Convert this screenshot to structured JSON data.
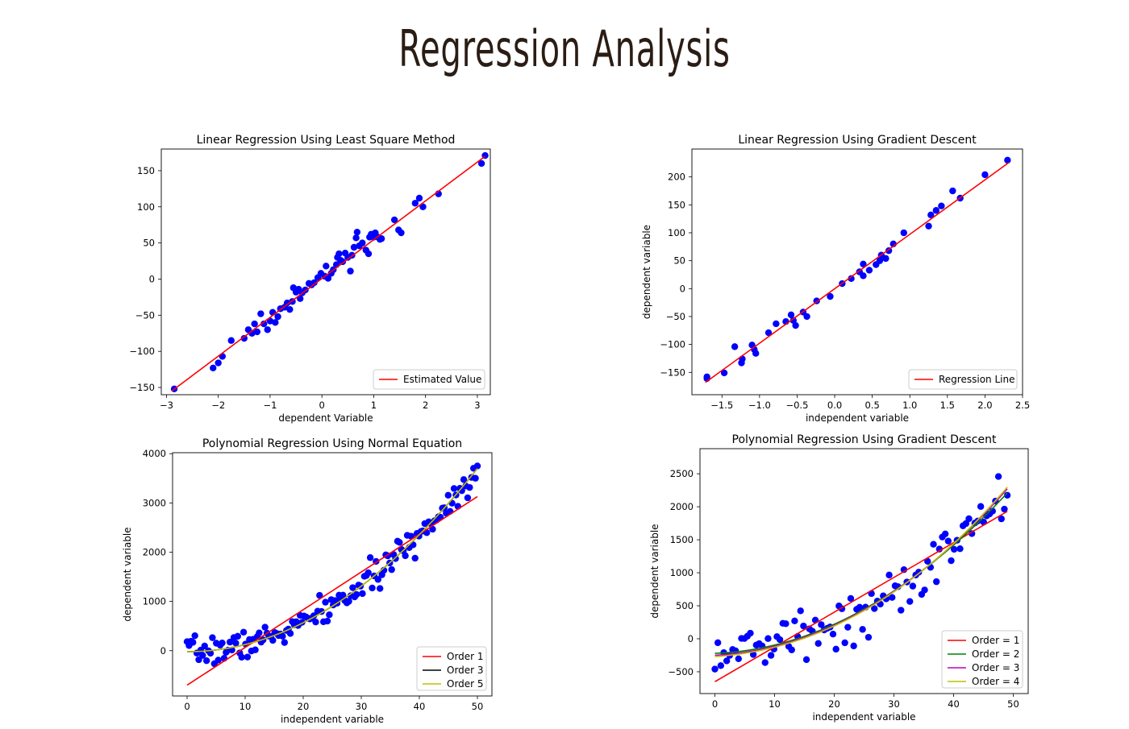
{
  "page": {
    "title": "Regression Analysis"
  },
  "colors": {
    "points": "#0000ff",
    "red": "#ff0000",
    "black": "#000000",
    "green": "#008000",
    "magenta": "#bf00bf",
    "olive": "#bfbf00"
  },
  "chart_data": [
    {
      "type": "scatter",
      "title": "Linear Regression Using Least Square Method",
      "xlabel": "dependent Variable",
      "ylabel": "",
      "xlim": [
        -3.1,
        3.25
      ],
      "ylim": [
        -160,
        180
      ],
      "xticks": [
        -3,
        -2,
        -1,
        0,
        1,
        2,
        3
      ],
      "yticks": [
        -150,
        -100,
        -50,
        0,
        50,
        100,
        150
      ],
      "grid": false,
      "legend_position": "bottom-right",
      "scatter": {
        "name": "",
        "color": "#0000ff",
        "points": [
          [
            -2.85,
            -152
          ],
          [
            -2.1,
            -123
          ],
          [
            -2.0,
            -116
          ],
          [
            -1.92,
            -107
          ],
          [
            -1.75,
            -85
          ],
          [
            -1.5,
            -82
          ],
          [
            -1.42,
            -70
          ],
          [
            -1.35,
            -75
          ],
          [
            -1.3,
            -62
          ],
          [
            -1.25,
            -73
          ],
          [
            -1.18,
            -48
          ],
          [
            -1.12,
            -62
          ],
          [
            -1.05,
            -70
          ],
          [
            -1.0,
            -58
          ],
          [
            -0.95,
            -46
          ],
          [
            -0.9,
            -60
          ],
          [
            -0.85,
            -52
          ],
          [
            -0.8,
            -41
          ],
          [
            -0.72,
            -39
          ],
          [
            -0.67,
            -33
          ],
          [
            -0.62,
            -42
          ],
          [
            -0.57,
            -31
          ],
          [
            -0.55,
            -12
          ],
          [
            -0.5,
            -18
          ],
          [
            -0.45,
            -14
          ],
          [
            -0.42,
            -27
          ],
          [
            -0.38,
            -19
          ],
          [
            -0.32,
            -15
          ],
          [
            -0.25,
            -6
          ],
          [
            -0.2,
            -8
          ],
          [
            -0.15,
            -5
          ],
          [
            -0.08,
            2
          ],
          [
            -0.02,
            8
          ],
          [
            0.05,
            4
          ],
          [
            0.08,
            18
          ],
          [
            0.12,
            1
          ],
          [
            0.18,
            8
          ],
          [
            0.22,
            13
          ],
          [
            0.28,
            20
          ],
          [
            0.3,
            30
          ],
          [
            0.33,
            35
          ],
          [
            0.36,
            26
          ],
          [
            0.4,
            24
          ],
          [
            0.45,
            36
          ],
          [
            0.5,
            30
          ],
          [
            0.55,
            11
          ],
          [
            0.58,
            33
          ],
          [
            0.62,
            44
          ],
          [
            0.66,
            57
          ],
          [
            0.68,
            65
          ],
          [
            0.72,
            46
          ],
          [
            0.78,
            50
          ],
          [
            0.85,
            40
          ],
          [
            0.9,
            35
          ],
          [
            0.92,
            58
          ],
          [
            0.95,
            62
          ],
          [
            1.0,
            58
          ],
          [
            1.03,
            64
          ],
          [
            1.08,
            58
          ],
          [
            1.12,
            55
          ],
          [
            1.15,
            56
          ],
          [
            1.4,
            82
          ],
          [
            1.48,
            68
          ],
          [
            1.53,
            64
          ],
          [
            1.8,
            105
          ],
          [
            1.88,
            112
          ],
          [
            1.95,
            100
          ],
          [
            2.25,
            118
          ],
          [
            3.08,
            160
          ],
          [
            3.15,
            171
          ]
        ]
      },
      "series": [
        {
          "name": "Estimated Value",
          "color": "#ff0000",
          "kind": "line",
          "points": [
            [
              -2.9,
              -155
            ],
            [
              3.15,
              170
            ]
          ]
        }
      ]
    },
    {
      "type": "scatter",
      "title": "Linear Regression Using Gradient Descent",
      "xlabel": "independent variable",
      "ylabel": "dependent variable",
      "xlim": [
        -1.9,
        2.5
      ],
      "ylim": [
        -190,
        250
      ],
      "xticks": [
        -1.5,
        -1.0,
        -0.5,
        0.0,
        0.5,
        1.0,
        1.5,
        2.0,
        2.5
      ],
      "xtick_labels": [
        "−1.5",
        "−1.0",
        "−0.5",
        "0.0",
        "0.5",
        "1.0",
        "1.5",
        "2.0",
        "2.5"
      ],
      "yticks": [
        -150,
        -100,
        -50,
        0,
        50,
        100,
        150,
        200
      ],
      "grid": false,
      "legend_position": "bottom-right",
      "scatter": {
        "name": "",
        "color": "#0000ff",
        "points": [
          [
            -1.7,
            -158
          ],
          [
            -1.7,
            -161
          ],
          [
            -1.47,
            -151
          ],
          [
            -1.33,
            -104
          ],
          [
            -1.24,
            -133
          ],
          [
            -1.23,
            -126
          ],
          [
            -1.1,
            -101
          ],
          [
            -1.07,
            -109
          ],
          [
            -1.05,
            -116
          ],
          [
            -0.88,
            -79
          ],
          [
            -0.78,
            -63
          ],
          [
            -0.65,
            -59
          ],
          [
            -0.58,
            -47
          ],
          [
            -0.55,
            -57
          ],
          [
            -0.52,
            -66
          ],
          [
            -0.42,
            -42
          ],
          [
            -0.37,
            -50
          ],
          [
            -0.24,
            -22
          ],
          [
            -0.06,
            -14
          ],
          [
            0.1,
            9
          ],
          [
            0.22,
            18
          ],
          [
            0.33,
            30
          ],
          [
            0.38,
            44
          ],
          [
            0.38,
            23
          ],
          [
            0.46,
            33
          ],
          [
            0.55,
            43
          ],
          [
            0.6,
            50
          ],
          [
            0.62,
            60
          ],
          [
            0.68,
            54
          ],
          [
            0.72,
            68
          ],
          [
            0.78,
            80
          ],
          [
            0.92,
            100
          ],
          [
            1.25,
            112
          ],
          [
            1.28,
            132
          ],
          [
            1.35,
            140
          ],
          [
            1.42,
            148
          ],
          [
            1.57,
            175
          ],
          [
            1.67,
            162
          ],
          [
            2.0,
            204
          ],
          [
            2.3,
            230
          ]
        ]
      },
      "series": [
        {
          "name": "Regression Line",
          "color": "#ff0000",
          "kind": "line",
          "points": [
            [
              -1.72,
              -168
            ],
            [
              2.32,
              226
            ]
          ]
        }
      ]
    },
    {
      "type": "scatter",
      "title": "Polynomial Regression Using Normal Equation",
      "xlabel": "independent variable",
      "ylabel": "dependent variable",
      "xlim": [
        -2.5,
        52.5
      ],
      "ylim": [
        -920,
        4020
      ],
      "xticks": [
        0,
        10,
        20,
        30,
        40,
        50
      ],
      "yticks": [
        0,
        1000,
        2000,
        3000,
        4000
      ],
      "grid": false,
      "legend_position": "bottom-right",
      "scatter_model": {
        "a": 1.5,
        "b": -0.6,
        "c": -20,
        "n": 150,
        "x_max": 50,
        "seed": 7,
        "noise": 140
      },
      "scatter": {
        "name": "",
        "color": "#0000ff"
      },
      "series": [
        {
          "name": "Order 1",
          "color": "#ff0000",
          "kind": "line",
          "points": [
            [
              0,
              -700
            ],
            [
              50,
              3130
            ]
          ]
        },
        {
          "name": "Order 3",
          "color": "#000000",
          "kind": "poly",
          "coef": [
            -20,
            -0.6,
            1.5
          ],
          "x_range": [
            0,
            50
          ]
        },
        {
          "name": "Order 5",
          "color": "#bfbf00",
          "kind": "poly",
          "coef": [
            -20,
            -0.6,
            1.5
          ],
          "x_range": [
            0,
            50
          ]
        }
      ]
    },
    {
      "type": "scatter",
      "title": "Polynomial Regression Using Gradient Descent",
      "xlabel": "independent variable",
      "ylabel": "dependent variable",
      "xlim": [
        -2.5,
        52.5
      ],
      "ylim": [
        -830,
        2880
      ],
      "xticks": [
        0,
        10,
        20,
        30,
        40,
        50
      ],
      "yticks": [
        -500,
        0,
        500,
        1000,
        1500,
        2000,
        2500
      ],
      "grid": false,
      "legend_position": "bottom-right",
      "scatter_model": {
        "a": 1.0,
        "b": -2.0,
        "c": -150,
        "n": 100,
        "x_max": 49,
        "seed": 13,
        "noise": 190
      },
      "scatter": {
        "name": "",
        "color": "#0000ff"
      },
      "series": [
        {
          "name": "Order = 1",
          "color": "#ff0000",
          "kind": "line",
          "points": [
            [
              0,
              -650
            ],
            [
              49,
              1930
            ]
          ]
        },
        {
          "name": "Order = 2",
          "color": "#008000",
          "kind": "poly",
          "coef": [
            -220,
            3,
            0.95
          ],
          "x_range": [
            0,
            49
          ]
        },
        {
          "name": "Order = 3",
          "color": "#bf00bf",
          "kind": "poly",
          "coef": [
            -250,
            5,
            0.85,
            0.002
          ],
          "x_range": [
            0,
            49
          ]
        },
        {
          "name": "Order = 4",
          "color": "#bfbf00",
          "kind": "poly",
          "coef": [
            -270,
            6,
            0.8,
            0.003
          ],
          "x_range": [
            0,
            49
          ]
        }
      ]
    }
  ]
}
